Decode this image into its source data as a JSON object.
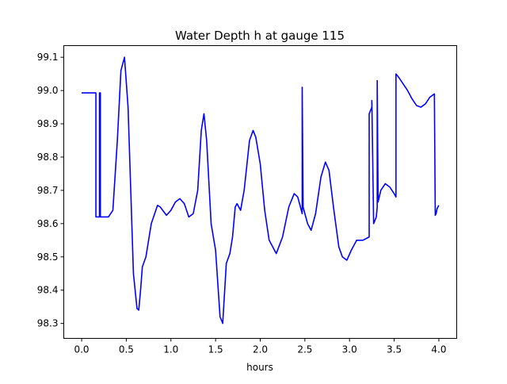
{
  "chart_data": {
    "type": "line",
    "title": "Water Depth h at gauge 115",
    "xlabel": "hours",
    "ylabel": "",
    "xlim": [
      -0.2,
      4.2
    ],
    "ylim": [
      98.255,
      99.135
    ],
    "xticks": [
      0.0,
      0.5,
      1.0,
      1.5,
      2.0,
      2.5,
      3.0,
      3.5,
      4.0
    ],
    "xtick_labels": [
      "0.0",
      "0.5",
      "1.0",
      "1.5",
      "2.0",
      "2.5",
      "3.0",
      "3.5",
      "4.0"
    ],
    "yticks": [
      98.3,
      98.4,
      98.5,
      98.6,
      98.7,
      98.8,
      98.9,
      99.0,
      99.1
    ],
    "ytick_labels": [
      "98.3",
      "98.4",
      "98.5",
      "98.6",
      "98.7",
      "98.8",
      "98.9",
      "99.0",
      "99.1"
    ],
    "grid": false,
    "series": [
      {
        "color": "#0000ff",
        "x": [
          0.0,
          0.16,
          0.16,
          0.2,
          0.2,
          0.21,
          0.21,
          0.22,
          0.3,
          0.35,
          0.4,
          0.44,
          0.48,
          0.52,
          0.55,
          0.58,
          0.62,
          0.64,
          0.66,
          0.68,
          0.72,
          0.78,
          0.85,
          0.88,
          0.95,
          1.0,
          1.05,
          1.1,
          1.15,
          1.2,
          1.25,
          1.3,
          1.34,
          1.37,
          1.4,
          1.45,
          1.5,
          1.53,
          1.55,
          1.58,
          1.62,
          1.66,
          1.69,
          1.72,
          1.74,
          1.78,
          1.82,
          1.88,
          1.92,
          1.95,
          2.0,
          2.05,
          2.1,
          2.18,
          2.25,
          2.32,
          2.38,
          2.42,
          2.45,
          2.47,
          2.47,
          2.48,
          2.53,
          2.57,
          2.62,
          2.68,
          2.73,
          2.77,
          2.82,
          2.88,
          2.92,
          2.97,
          3.02,
          3.08,
          3.15,
          3.22,
          3.22,
          3.25,
          3.25,
          3.27,
          3.3,
          3.31,
          3.31,
          3.32,
          3.35,
          3.4,
          3.45,
          3.5,
          3.52,
          3.52,
          3.55,
          3.6,
          3.65,
          3.7,
          3.75,
          3.8,
          3.85,
          3.9,
          3.95,
          3.96,
          3.97,
          3.98,
          4.0
        ],
        "y": [
          98.993,
          98.993,
          98.62,
          98.62,
          98.993,
          98.993,
          98.62,
          98.62,
          98.62,
          98.64,
          98.85,
          99.06,
          99.1,
          98.95,
          98.7,
          98.45,
          98.345,
          98.34,
          98.4,
          98.47,
          98.5,
          98.6,
          98.655,
          98.65,
          98.625,
          98.64,
          98.665,
          98.675,
          98.66,
          98.62,
          98.63,
          98.7,
          98.88,
          98.93,
          98.85,
          98.6,
          98.52,
          98.4,
          98.32,
          98.3,
          98.48,
          98.51,
          98.56,
          98.65,
          98.66,
          98.64,
          98.7,
          98.85,
          98.88,
          98.86,
          98.78,
          98.64,
          98.55,
          98.51,
          98.56,
          98.65,
          98.69,
          98.68,
          98.65,
          98.63,
          99.01,
          98.65,
          98.6,
          98.58,
          98.63,
          98.74,
          98.785,
          98.76,
          98.65,
          98.53,
          98.5,
          98.49,
          98.52,
          98.55,
          98.55,
          98.56,
          98.93,
          98.95,
          98.97,
          98.6,
          98.62,
          98.65,
          99.03,
          98.665,
          98.7,
          98.72,
          98.71,
          98.69,
          98.68,
          99.05,
          99.04,
          99.02,
          99.0,
          98.975,
          98.955,
          98.95,
          98.96,
          98.98,
          98.99,
          98.625,
          98.63,
          98.645,
          98.655
        ]
      }
    ]
  }
}
